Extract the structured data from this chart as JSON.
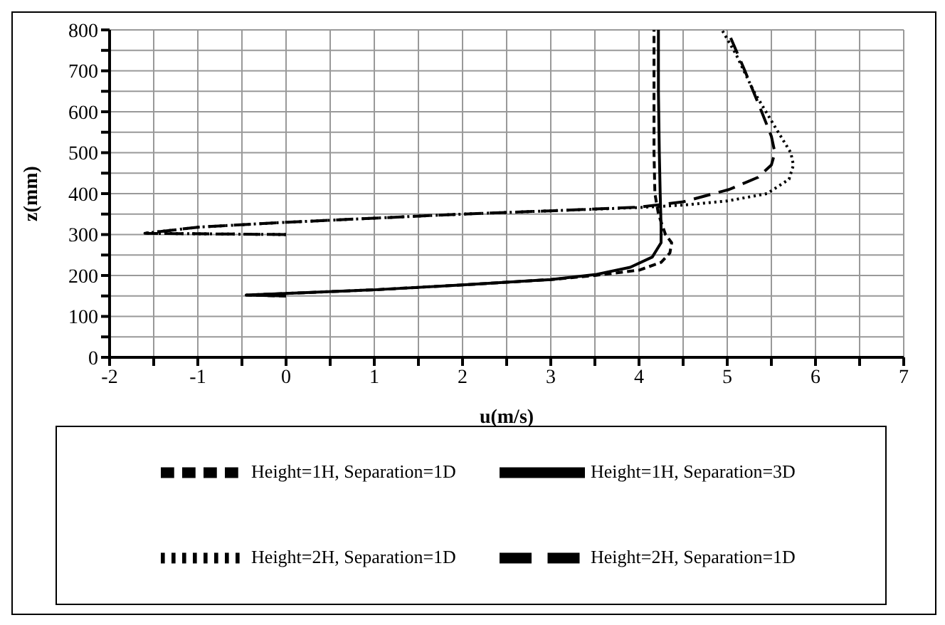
{
  "chart_data": {
    "type": "line",
    "xlabel": "u(m/s)",
    "ylabel": "z(mm)",
    "xlim": [
      -2,
      7
    ],
    "ylim": [
      0,
      800
    ],
    "xticks": [
      -2,
      {
        "value": -1.5,
        "label": null
      },
      -1,
      {
        "value": -0.5,
        "label": null
      },
      0,
      {
        "value": 0.5,
        "label": null
      },
      1,
      {
        "value": 1.5,
        "label": null
      },
      2,
      {
        "value": 2.5,
        "label": null
      },
      3,
      {
        "value": 3.5,
        "label": null
      },
      4,
      {
        "value": 4.5,
        "label": null
      },
      5,
      {
        "value": 5.5,
        "label": null
      },
      6,
      {
        "value": 6.5,
        "label": null
      },
      7
    ],
    "yticks": [
      0,
      {
        "value": 50,
        "label": null
      },
      100,
      {
        "value": 150,
        "label": null
      },
      200,
      {
        "value": 250,
        "label": null
      },
      300,
      {
        "value": 350,
        "label": null
      },
      400,
      {
        "value": 450,
        "label": null
      },
      500,
      {
        "value": 550,
        "label": null
      },
      600,
      {
        "value": 650,
        "label": null
      },
      700,
      {
        "value": 750,
        "label": null
      },
      800
    ],
    "grid": true,
    "legend": "bottom",
    "marker": "none",
    "series": [
      {
        "name": "Height=1H, Separation=1D",
        "color": "#000000",
        "line_style": "dashed",
        "x": [
          0,
          -0.45,
          1,
          2,
          3,
          3.5,
          4,
          4.25,
          4.35,
          4.37,
          4.3,
          4.22,
          4.18,
          4.17,
          4.17,
          4.17,
          4.17
        ],
        "values": [
          150,
          152,
          165,
          177,
          190,
          200,
          213,
          232,
          255,
          280,
          300,
          350,
          400,
          500,
          600,
          700,
          800
        ]
      },
      {
        "name": "Height=2H, Separation=1D",
        "color": "#000000",
        "line_style": "dotted",
        "x": [
          0,
          -1.6,
          -1,
          0,
          1,
          2,
          3,
          4,
          4.5,
          5,
          5.45,
          5.7,
          5.75,
          5.72,
          5.55,
          5.3,
          5.1,
          4.94
        ],
        "values": [
          300,
          303,
          318,
          330,
          340,
          350,
          358,
          366,
          372,
          382,
          400,
          435,
          470,
          500,
          560,
          650,
          740,
          800
        ]
      },
      {
        "name": "Height=1H, Separation=3D",
        "color": "#000000",
        "line_style": "solid",
        "x": [
          0,
          -0.45,
          1,
          2,
          3,
          3.5,
          3.9,
          4.15,
          4.25,
          4.25,
          4.24,
          4.23,
          4.22,
          4.22
        ],
        "values": [
          150,
          152,
          165,
          177,
          190,
          202,
          220,
          245,
          280,
          320,
          400,
          500,
          650,
          800
        ]
      },
      {
        "name": "Height=2H, Separation=1D",
        "color": "#000000",
        "line_style": "longdash",
        "x": [
          0,
          -1.6,
          -1,
          0,
          1,
          2,
          3,
          4,
          4.5,
          5.02,
          5.35,
          5.5,
          5.54,
          5.5,
          5.39,
          5.2,
          5.0
        ],
        "values": [
          300,
          303,
          318,
          330,
          340,
          350,
          358,
          367,
          380,
          410,
          440,
          470,
          500,
          540,
          600,
          700,
          800
        ]
      }
    ]
  }
}
